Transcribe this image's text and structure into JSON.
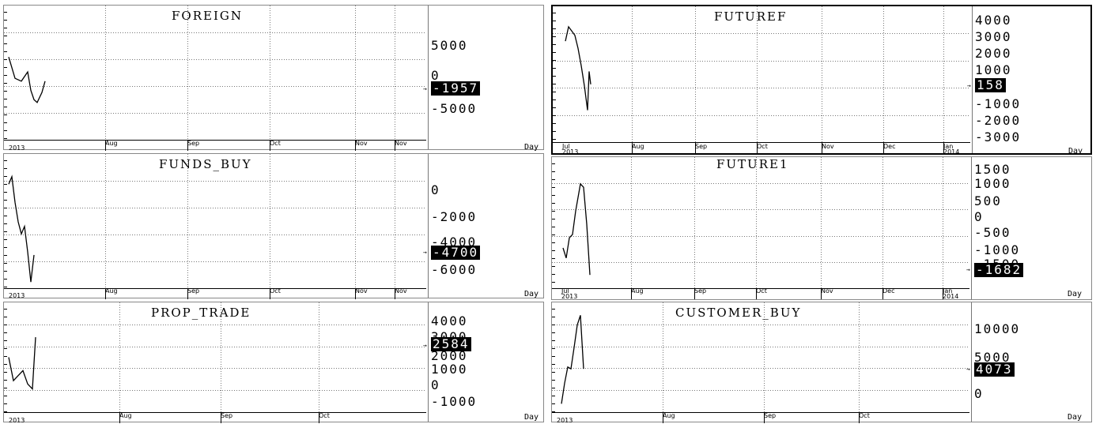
{
  "panels": [
    {
      "id": "foreign",
      "title": "FOREIGN",
      "current": "-1957",
      "period": "Day",
      "y_labels": [
        "5000",
        "0",
        "-5000"
      ],
      "x_labels": [
        "2013",
        "Aug",
        "Sep",
        "Oct",
        "Nov",
        "Nov"
      ],
      "ylim": [
        -9000,
        9000
      ],
      "series": [
        2200,
        -800,
        -1200,
        100,
        -2500,
        -3800,
        -4200,
        -2800,
        -1200
      ]
    },
    {
      "id": "futuref",
      "title": "FUTUREF",
      "current": "158",
      "period": "Day",
      "selected": true,
      "y_labels": [
        "4000",
        "3000",
        "2000",
        "1000",
        "158",
        "-1000",
        "-2000",
        "-3000"
      ],
      "x_labels": [
        "Jul",
        "2013",
        "Aug",
        "Sep",
        "Oct",
        "Nov",
        "Dec",
        "Jan",
        "2014"
      ],
      "ylim": [
        -4300,
        4700
      ],
      "series": [
        2500,
        3500,
        3200,
        2900,
        2000,
        800,
        -600,
        -2300,
        400,
        -500
      ]
    },
    {
      "id": "funds_buy",
      "title": "FUNDS_BUY",
      "current": "-4700",
      "period": "Day",
      "y_labels": [
        "0",
        "-2000",
        "-4000",
        "-6000"
      ],
      "x_labels": [
        "2013",
        "Aug",
        "Sep",
        "Oct",
        "Nov",
        "Nov"
      ],
      "ylim": [
        -7000,
        1500
      ],
      "series": [
        -300,
        200,
        -1500,
        -2800,
        -3600,
        -3100,
        -4800,
        -6800,
        -5000
      ]
    },
    {
      "id": "future1",
      "title": "FUTURE1",
      "current": "-1682",
      "period": "Day",
      "y_labels": [
        "1500",
        "1000",
        "500",
        "0",
        "-500",
        "-1000",
        "-1500"
      ],
      "x_labels": [
        "Jul",
        "2013",
        "Aug",
        "Sep",
        "Oct",
        "Nov",
        "Dec",
        "Jan",
        "2014"
      ],
      "ylim": [
        -2000,
        1700
      ],
      "series": [
        -900,
        -1200,
        -600,
        -500,
        200,
        1000,
        900,
        -200,
        -1700
      ]
    },
    {
      "id": "prop_trade",
      "title": "PROP_TRADE",
      "current": "2584",
      "period": "Day",
      "y_labels": [
        "4000",
        "3000",
        "2000",
        "1000",
        "0",
        "-1000"
      ],
      "x_labels": [
        "2013",
        "Aug",
        "Sep",
        "Oct"
      ],
      "ylim": [
        -1600,
        4600
      ],
      "series": [
        1500,
        100,
        400,
        700,
        -100,
        -400,
        2700
      ]
    },
    {
      "id": "customer_buy",
      "title": "CUSTOMER_BUY",
      "current": "4073",
      "period": "Day",
      "y_labels": [
        "10000",
        "5000",
        "0"
      ],
      "x_labels": [
        "2013",
        "Aug",
        "Sep",
        "Oct"
      ],
      "ylim": [
        -2000,
        14000
      ],
      "series": [
        -1200,
        2000,
        4500,
        4200,
        7500,
        11000,
        12500,
        4200
      ]
    }
  ],
  "colors": {
    "line": "#000000",
    "grid": "#777777",
    "background": "#ffffff",
    "highlight": "#000000"
  }
}
